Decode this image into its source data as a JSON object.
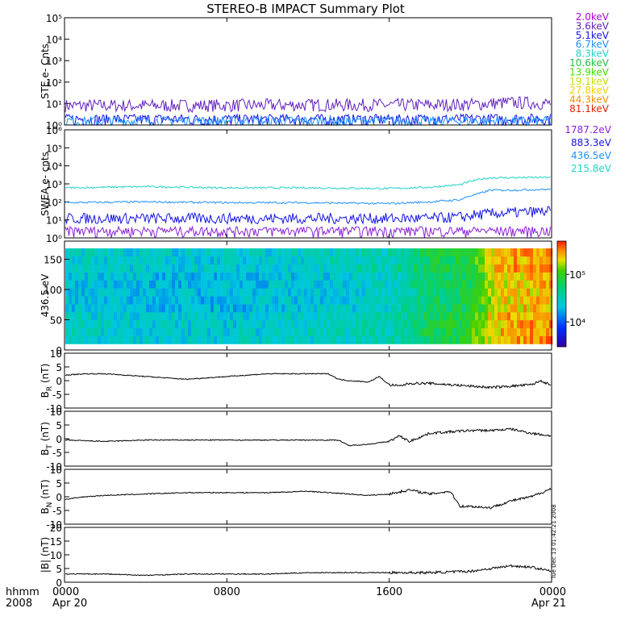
{
  "title": "STEREO-B IMPACT Summary Plot",
  "stamp": "Tue Dec 13 01:42:21 2008",
  "time_axis": {
    "label_top": "hhmm",
    "label_bottom": "2008",
    "ticks": [
      {
        "hour": 0,
        "top": "0000",
        "bottom": "Apr 20"
      },
      {
        "hour": 8,
        "top": "0800",
        "bottom": ""
      },
      {
        "hour": 16,
        "top": "1600",
        "bottom": ""
      },
      {
        "hour": 24,
        "top": "0000",
        "bottom": "Apr 21"
      }
    ],
    "range_hours": [
      0,
      24
    ]
  },
  "legend_ste": [
    {
      "label": "2.0keV",
      "color": "#b000e0"
    },
    {
      "label": "3.6keV",
      "color": "#6020c0"
    },
    {
      "label": "5.1keV",
      "color": "#1414e6"
    },
    {
      "label": "6.7keV",
      "color": "#1e90ff"
    },
    {
      "label": "8.3keV",
      "color": "#20d2c8"
    },
    {
      "label": "10.6keV",
      "color": "#20c040"
    },
    {
      "label": "13.9keV",
      "color": "#40e000"
    },
    {
      "label": "19.1keV",
      "color": "#c8e000"
    },
    {
      "label": "27.8keV",
      "color": "#f0d000"
    },
    {
      "label": "44.3keV",
      "color": "#f09000"
    },
    {
      "label": "81.1keV",
      "color": "#e02000"
    }
  ],
  "legend_swea": [
    {
      "label": "1787.2eV",
      "color": "#8a20d8"
    },
    {
      "label": "883.3eV",
      "color": "#1414e6"
    },
    {
      "label": "436.5eV",
      "color": "#1e90ff"
    },
    {
      "label": "215.8eV",
      "color": "#20d2c8"
    }
  ],
  "chart_data": [
    {
      "id": "ste",
      "type": "line",
      "ylabel": "STE e- Cnts",
      "yscale": "log",
      "ylim": [
        1,
        100000
      ],
      "ytick_labels": [
        "10⁰",
        "10¹",
        "10²",
        "10³",
        "10⁴",
        "10⁵"
      ],
      "series": [
        {
          "name": "3.6keV",
          "color": "#6020c0",
          "x": [
            0,
            6,
            12,
            18,
            20,
            22,
            24
          ],
          "values": [
            8,
            8,
            8.5,
            8.5,
            9,
            11,
            10
          ]
        },
        {
          "name": "5.1keV",
          "color": "#1414e6",
          "x": [
            0,
            6,
            12,
            18,
            24
          ],
          "values": [
            1.5,
            1.5,
            1.5,
            1.5,
            1.6
          ]
        },
        {
          "name": "6.7keV",
          "color": "#1e90ff",
          "x": [
            0,
            12,
            24
          ],
          "values": [
            1.2,
            1.2,
            1.2
          ]
        }
      ]
    },
    {
      "id": "swea",
      "type": "line",
      "ylabel": "SWEA e- cnts",
      "yscale": "log",
      "ylim": [
        1,
        1000000
      ],
      "ytick_labels": [
        "10⁰",
        "10¹",
        "10²",
        "10³",
        "10⁴",
        "10⁵",
        "10⁶"
      ],
      "series": [
        {
          "name": "215.8eV",
          "color": "#20d2c8",
          "x": [
            0,
            4,
            8,
            12,
            16,
            18,
            19.5,
            20.5,
            21,
            22,
            24
          ],
          "values": [
            600,
            700,
            600,
            600,
            550,
            650,
            900,
            1800,
            2200,
            2200,
            2300
          ]
        },
        {
          "name": "436.5eV",
          "color": "#1e90ff",
          "x": [
            0,
            4,
            8,
            12,
            16,
            18,
            19.5,
            20.5,
            21,
            22,
            24
          ],
          "values": [
            90,
            100,
            90,
            90,
            80,
            100,
            130,
            300,
            450,
            450,
            500
          ]
        },
        {
          "name": "883.3eV",
          "color": "#1414e6",
          "x": [
            0,
            8,
            16,
            18,
            19.5,
            20.5,
            22,
            24
          ],
          "values": [
            12,
            12,
            12,
            12,
            14,
            20,
            25,
            30
          ]
        },
        {
          "name": "1787.2eV",
          "color": "#8a20d8",
          "x": [
            0,
            8,
            16,
            24
          ],
          "values": [
            2,
            2,
            2,
            2
          ]
        }
      ]
    },
    {
      "id": "pad",
      "type": "heatmap",
      "ylabel": "436.5 eV",
      "ylim": [
        0,
        180
      ],
      "yticks": [
        0,
        50,
        100,
        150
      ],
      "colorbar_labels": [
        "10⁴",
        "10⁵"
      ],
      "colorbar_range": [
        3000,
        500000
      ],
      "time_profile": {
        "x": [
          0,
          4,
          8,
          12,
          16,
          18,
          19.5,
          20.5,
          21,
          22,
          24
        ],
        "values": [
          25000,
          23000,
          22000,
          25000,
          30000,
          60000,
          70000,
          120000,
          200000,
          250000,
          280000
        ]
      },
      "angle_range": [
        10,
        168
      ]
    },
    {
      "id": "br",
      "type": "line",
      "ylabel": "B_R (nT)",
      "ylim": [
        -10,
        10
      ],
      "yticks": [
        -10,
        -5,
        0,
        5,
        10
      ],
      "series": [
        {
          "x": [
            0,
            1,
            2,
            3,
            4,
            5,
            6,
            7,
            8,
            9,
            10,
            11,
            12,
            13,
            13.5,
            14,
            15,
            15.5,
            16,
            16.5,
            17,
            18,
            19,
            20,
            21,
            22,
            23,
            23.5,
            24
          ],
          "values": [
            2,
            2.5,
            2.5,
            2,
            1.5,
            1,
            0.5,
            1,
            1.5,
            2,
            2.5,
            2.5,
            2.5,
            2.5,
            0.5,
            0,
            -0.5,
            1.5,
            -1.5,
            -2,
            -1,
            -1,
            -1.5,
            -2,
            -2.5,
            -2,
            -1.5,
            0,
            -2
          ]
        }
      ]
    },
    {
      "id": "bt",
      "type": "line",
      "ylabel": "B_T (nT)",
      "ylim": [
        -10,
        10
      ],
      "yticks": [
        -10,
        -5,
        0,
        5,
        10
      ],
      "series": [
        {
          "x": [
            0,
            2,
            4,
            6,
            8,
            10,
            12,
            13.5,
            14,
            15,
            16,
            16.5,
            17,
            18,
            19,
            20,
            21,
            22,
            23,
            24
          ],
          "values": [
            -0.5,
            -1,
            -0.5,
            -0.5,
            -0.5,
            -0.5,
            -0.5,
            -0.5,
            -2.5,
            -2,
            -1,
            1,
            -1,
            2,
            2.5,
            3,
            3,
            3.5,
            2,
            1
          ]
        }
      ]
    },
    {
      "id": "bn",
      "type": "line",
      "ylabel": "B_N (nT)",
      "ylim": [
        -10,
        10
      ],
      "yticks": [
        -10,
        -5,
        0,
        5,
        10
      ],
      "series": [
        {
          "x": [
            0,
            1,
            2,
            4,
            6,
            8,
            10,
            12,
            13,
            14,
            15,
            16,
            17,
            18,
            19,
            19.5,
            20,
            21,
            22,
            23,
            24
          ],
          "values": [
            -1,
            0,
            0.5,
            1,
            1.5,
            1.5,
            1.5,
            2,
            1.5,
            1,
            0.5,
            1,
            2.5,
            1,
            2,
            -3.5,
            -3.5,
            -4,
            -1.5,
            0,
            3
          ]
        }
      ]
    },
    {
      "id": "bmag",
      "type": "line",
      "ylabel": "|B| (nT)",
      "ylim": [
        0,
        20
      ],
      "yticks": [
        0,
        5,
        10,
        15,
        20
      ],
      "series": [
        {
          "x": [
            0,
            2,
            4,
            6,
            8,
            10,
            12,
            14,
            16,
            18,
            20,
            21,
            22,
            23,
            24
          ],
          "values": [
            3,
            3,
            2.5,
            3,
            3,
            3,
            3.5,
            3.5,
            3.5,
            3.5,
            4,
            5,
            6,
            5.5,
            4
          ]
        }
      ]
    }
  ]
}
